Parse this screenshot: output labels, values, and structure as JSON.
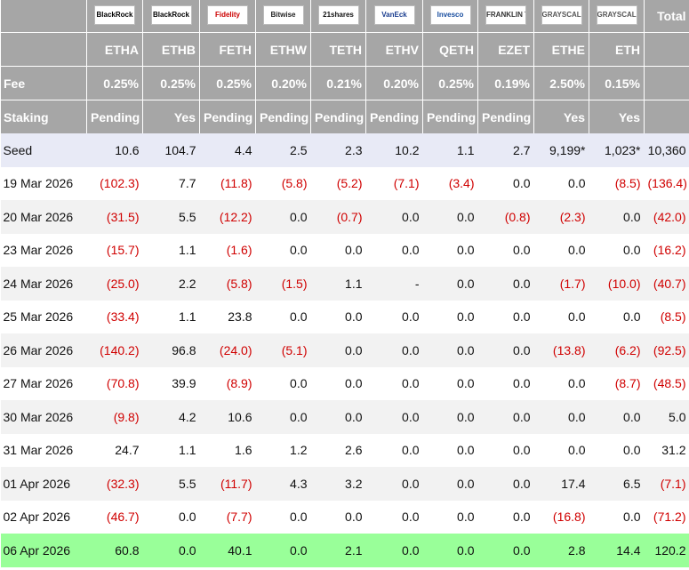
{
  "header": {
    "logos": [
      "BlackRock",
      "BlackRock",
      "Fidelity",
      "Bitwise",
      "21shares",
      "VanEck",
      "Invesco",
      "FRANKLIN TEMPLETON",
      "GRAYSCALE",
      "GRAYSCALE"
    ],
    "total_label": "Total",
    "tickers": [
      "ETHA",
      "ETHB",
      "FETH",
      "ETHW",
      "TETH",
      "ETHV",
      "QETH",
      "EZET",
      "ETHE",
      "ETH"
    ]
  },
  "fee": {
    "label": "Fee",
    "values": [
      "0.25%",
      "0.25%",
      "0.25%",
      "0.20%",
      "0.21%",
      "0.20%",
      "0.25%",
      "0.19%",
      "2.50%",
      "0.15%"
    ]
  },
  "staking": {
    "label": "Staking",
    "values": [
      "Pending",
      "Yes",
      "Pending",
      "Pending",
      "Pending",
      "Pending",
      "Pending",
      "Pending",
      "Yes",
      "Yes"
    ]
  },
  "table": {
    "rows": [
      {
        "label": "Seed",
        "values": [
          "10.6",
          "104.7",
          "4.4",
          "2.5",
          "2.3",
          "10.2",
          "1.1",
          "2.7",
          "9,199*",
          "1,023*",
          "10,360"
        ]
      },
      {
        "label": "19 Mar 2026",
        "values": [
          "(102.3)",
          "7.7",
          "(11.8)",
          "(5.8)",
          "(5.2)",
          "(7.1)",
          "(3.4)",
          "0.0",
          "0.0",
          "(8.5)",
          "(136.4)"
        ]
      },
      {
        "label": "20 Mar 2026",
        "values": [
          "(31.5)",
          "5.5",
          "(12.2)",
          "0.0",
          "(0.7)",
          "0.0",
          "0.0",
          "(0.8)",
          "(2.3)",
          "0.0",
          "(42.0)"
        ]
      },
      {
        "label": "23 Mar 2026",
        "values": [
          "(15.7)",
          "1.1",
          "(1.6)",
          "0.0",
          "0.0",
          "0.0",
          "0.0",
          "0.0",
          "0.0",
          "0.0",
          "(16.2)"
        ]
      },
      {
        "label": "24 Mar 2026",
        "values": [
          "(25.0)",
          "2.2",
          "(5.8)",
          "(1.5)",
          "1.1",
          "-",
          "0.0",
          "0.0",
          "(1.7)",
          "(10.0)",
          "(40.7)"
        ]
      },
      {
        "label": "25 Mar 2026",
        "values": [
          "(33.4)",
          "1.1",
          "23.8",
          "0.0",
          "0.0",
          "0.0",
          "0.0",
          "0.0",
          "0.0",
          "0.0",
          "(8.5)"
        ]
      },
      {
        "label": "26 Mar 2026",
        "values": [
          "(140.2)",
          "96.8",
          "(24.0)",
          "(5.1)",
          "0.0",
          "0.0",
          "0.0",
          "0.0",
          "(13.8)",
          "(6.2)",
          "(92.5)"
        ]
      },
      {
        "label": "27 Mar 2026",
        "values": [
          "(70.8)",
          "39.9",
          "(8.9)",
          "0.0",
          "0.0",
          "0.0",
          "0.0",
          "0.0",
          "0.0",
          "(8.7)",
          "(48.5)"
        ]
      },
      {
        "label": "30 Mar 2026",
        "values": [
          "(9.8)",
          "4.2",
          "10.6",
          "0.0",
          "0.0",
          "0.0",
          "0.0",
          "0.0",
          "0.0",
          "0.0",
          "5.0"
        ]
      },
      {
        "label": "31 Mar 2026",
        "values": [
          "24.7",
          "1.1",
          "1.6",
          "1.2",
          "2.6",
          "0.0",
          "0.0",
          "0.0",
          "0.0",
          "0.0",
          "31.2"
        ]
      },
      {
        "label": "01 Apr 2026",
        "values": [
          "(32.3)",
          "5.5",
          "(11.7)",
          "4.3",
          "3.2",
          "0.0",
          "0.0",
          "0.0",
          "17.4",
          "6.5",
          "(7.1)"
        ]
      },
      {
        "label": "02 Apr 2026",
        "values": [
          "(46.7)",
          "0.0",
          "(7.7)",
          "0.0",
          "0.0",
          "0.0",
          "0.0",
          "0.0",
          "(16.8)",
          "0.0",
          "(71.2)"
        ]
      },
      {
        "label": "06 Apr 2026",
        "values": [
          "60.8",
          "0.0",
          "40.1",
          "0.0",
          "2.1",
          "0.0",
          "0.0",
          "0.0",
          "2.8",
          "14.4",
          "120.2"
        ]
      }
    ]
  }
}
